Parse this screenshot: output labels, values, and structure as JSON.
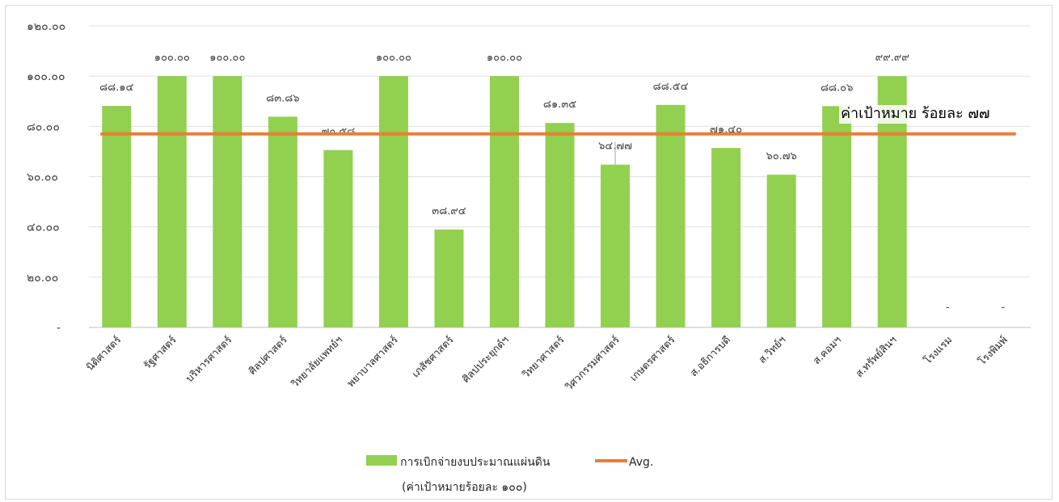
{
  "chart_data": {
    "type": "bar",
    "categories": [
      "นิติศาสตร์",
      "รัฐศาสตร์",
      "บริหารศาสตร์",
      "ศิลปศาสตร์",
      "วิทยาลัยแพทย์ฯ",
      "พยาบาลศาสตร์",
      "เภสัชศาสตร์",
      "ศิลปประยุกต์ฯ",
      "วิทยาศาสตร์",
      "วิศวกรรมศาสตร์",
      "เกษตรศาสตร์",
      "ส.อธิการบดี",
      "ส.วิทย์ฯ",
      "ส.คอมฯ",
      "ส.ทรัพย์สินฯ",
      "โรงแรม",
      "โรงพิมพ์"
    ],
    "series": [
      {
        "name": "การเบิกจ่ายงบประมาณแผ่นดิน",
        "name_line2": "(ค่าเป้าหมายร้อยละ ๑๐๐)",
        "type": "bar",
        "color": "#92d050",
        "values": [
          88.14,
          100.0,
          100.0,
          83.86,
          70.58,
          100.0,
          38.94,
          100.0,
          81.35,
          64.77,
          88.54,
          71.4,
          60.76,
          88.06,
          99.99,
          0,
          0
        ],
        "labels": [
          "๘๘.๑๔",
          "๑๐๐.๐๐",
          "๑๐๐.๐๐",
          "๘๓.๘๖",
          "๗๐.๕๘",
          "๑๐๐.๐๐",
          "๓๘.๙๔",
          "๑๐๐.๐๐",
          "๘๑.๓๕",
          "๖๔.๗๗",
          "๘๘.๕๔",
          "๗๑.๔๐",
          "๖๐.๗๖",
          "๘๘.๐๖",
          "๙๙.๙๙",
          "-",
          "-"
        ]
      },
      {
        "name": "Avg.",
        "type": "line",
        "color": "#ed7d31",
        "value": 77
      }
    ],
    "ylim": [
      0,
      120
    ],
    "yticks": [
      0,
      20,
      40,
      60,
      80,
      100,
      120
    ],
    "ytick_labels": [
      "-",
      "๒๐.๐๐",
      "๔๐.๐๐",
      "๖๐.๐๐",
      "๘๐.๐๐",
      "๑๐๐.๐๐",
      "๑๒๐.๐๐"
    ],
    "annotation": "ค่าเป้าหมาย ร้อยละ ๗๗",
    "grid": true,
    "legend_position": "bottom"
  }
}
